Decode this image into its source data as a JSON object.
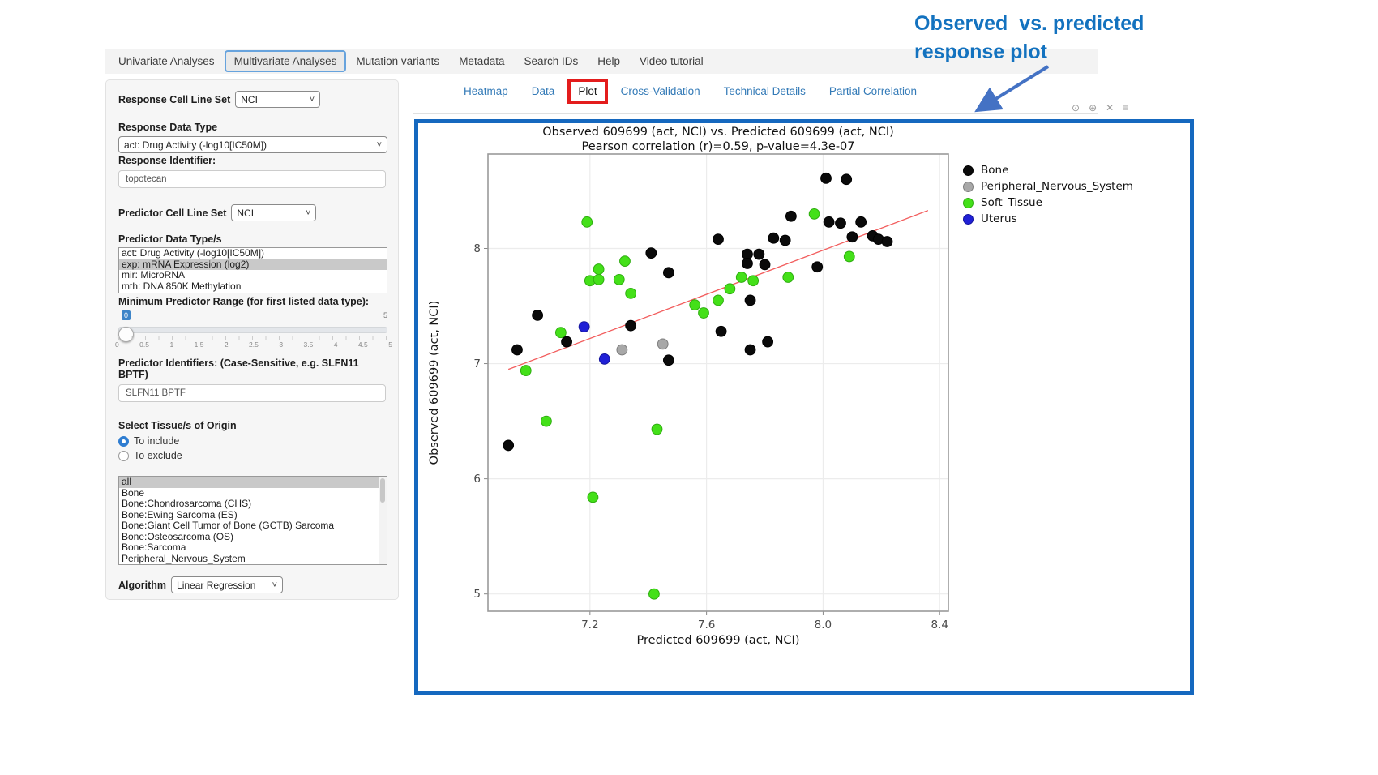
{
  "colors": {
    "link_blue": "#337ab7",
    "annotation_blue": "#1372bf",
    "arrow_blue": "#4472c4",
    "box_border_blue": "#1568bf",
    "red_highlight": "#e31c1c",
    "regression_red": "#f25c5c"
  },
  "annotation": {
    "line1": "Observed  vs. predicted",
    "line2": "response plot"
  },
  "top_nav": {
    "items": [
      "Univariate Analyses",
      "Multivariate Analyses",
      "Mutation variants",
      "Metadata",
      "Search IDs",
      "Help",
      "Video tutorial"
    ],
    "active_index": 1
  },
  "sidebar": {
    "response_cell_line_set": {
      "label": "Response Cell Line Set",
      "value": "NCI"
    },
    "response_data_type": {
      "label": "Response Data Type",
      "value": "act: Drug Activity (-log10[IC50M])"
    },
    "response_identifier": {
      "label": "Response Identifier:",
      "value": "topotecan"
    },
    "predictor_cell_line_set": {
      "label": "Predictor Cell Line Set",
      "value": "NCI"
    },
    "predictor_data_types": {
      "label": "Predictor Data Type/s",
      "options": [
        "act: Drug Activity (-log10[IC50M])",
        "exp: mRNA Expression (log2)",
        "mir: MicroRNA",
        "mth: DNA 850K Methylation"
      ],
      "selected_index": 1
    },
    "min_predictor_range": {
      "label": "Minimum Predictor Range (for first listed data type):",
      "value": "0",
      "max_label": "5",
      "grid": [
        "0",
        "0.5",
        "1",
        "1.5",
        "2",
        "2.5",
        "3",
        "3.5",
        "4",
        "4.5",
        "5"
      ]
    },
    "predictor_identifiers": {
      "label": "Predictor Identifiers: (Case-Sensitive, e.g. SLFN11 BPTF)",
      "value": "SLFN11 BPTF"
    },
    "tissue_origin": {
      "label": "Select Tissue/s of Origin",
      "radios": [
        {
          "label": "To include",
          "selected": true
        },
        {
          "label": "To exclude",
          "selected": false
        }
      ],
      "options": [
        "all",
        "Bone",
        "Bone:Chondrosarcoma (CHS)",
        "Bone:Ewing Sarcoma (ES)",
        "Bone:Giant Cell Tumor of Bone (GCTB) Sarcoma",
        "Bone:Osteosarcoma (OS)",
        "Bone:Sarcoma",
        "Peripheral_Nervous_System"
      ],
      "selected_index": 0
    },
    "algorithm": {
      "label": "Algorithm",
      "value": "Linear Regression"
    }
  },
  "content_tabs": {
    "items": [
      "Heatmap",
      "Data",
      "Plot",
      "Cross-Validation",
      "Technical Details",
      "Partial Correlation"
    ],
    "active_index": 2
  },
  "modebar_icons": [
    "camera-icon",
    "zoom-icon",
    "close-icon",
    "autoscale-icon"
  ],
  "modebar_glyphs": [
    "⊙",
    "⊕",
    "✕",
    "≡"
  ],
  "chart_data": {
    "type": "scatter",
    "title": "Observed 609699 (act, NCI) vs. Predicted 609699 (act, NCI)",
    "subtitle": "Pearson correlation (r)=0.59, p-value=4.3e-07",
    "xlabel": "Predicted 609699 (act, NCI)",
    "ylabel": "Observed 609699 (act, NCI)",
    "xlim": [
      6.85,
      8.43
    ],
    "ylim": [
      4.85,
      8.82
    ],
    "xticks": [
      7.2,
      7.6,
      8.0,
      8.4
    ],
    "xtick_labels": [
      "7.2",
      "7.6",
      "8.0",
      "8.4"
    ],
    "yticks": [
      5,
      6,
      7,
      8
    ],
    "ytick_labels": [
      "5",
      "6",
      "7",
      "8"
    ],
    "grid": true,
    "legend_position": "right-top",
    "regression_line": {
      "x1": 6.92,
      "y1": 6.95,
      "x2": 8.36,
      "y2": 8.33,
      "color": "#f25c5c"
    },
    "series": [
      {
        "name": "Bone",
        "color": "#0a0a0a",
        "edge": "#000000",
        "points": [
          [
            8.01,
            8.61
          ],
          [
            8.08,
            8.6
          ],
          [
            7.89,
            8.28
          ],
          [
            8.02,
            8.23
          ],
          [
            8.06,
            8.22
          ],
          [
            8.13,
            8.23
          ],
          [
            8.1,
            8.1
          ],
          [
            8.17,
            8.11
          ],
          [
            8.19,
            8.08
          ],
          [
            8.22,
            8.06
          ],
          [
            7.64,
            8.08
          ],
          [
            7.83,
            8.09
          ],
          [
            7.87,
            8.07
          ],
          [
            7.41,
            7.96
          ],
          [
            7.74,
            7.95
          ],
          [
            7.74,
            7.87
          ],
          [
            7.78,
            7.95
          ],
          [
            7.8,
            7.86
          ],
          [
            7.47,
            7.79
          ],
          [
            7.98,
            7.84
          ],
          [
            7.75,
            7.55
          ],
          [
            7.02,
            7.42
          ],
          [
            7.34,
            7.33
          ],
          [
            7.12,
            7.19
          ],
          [
            6.95,
            7.12
          ],
          [
            7.65,
            7.28
          ],
          [
            7.81,
            7.19
          ],
          [
            7.75,
            7.12
          ],
          [
            7.47,
            7.03
          ],
          [
            6.92,
            6.29
          ]
        ]
      },
      {
        "name": "Peripheral_Nervous_System",
        "color": "#a8a8a8",
        "edge": "#7e7e7e",
        "points": [
          [
            7.31,
            7.12
          ],
          [
            7.45,
            7.17
          ]
        ]
      },
      {
        "name": "Soft_Tissue",
        "color": "#44e019",
        "edge": "#2fae10",
        "points": [
          [
            7.19,
            8.23
          ],
          [
            7.97,
            8.3
          ],
          [
            8.09,
            7.93
          ],
          [
            7.32,
            7.89
          ],
          [
            7.23,
            7.82
          ],
          [
            7.2,
            7.72
          ],
          [
            7.23,
            7.73
          ],
          [
            7.3,
            7.73
          ],
          [
            7.34,
            7.61
          ],
          [
            7.72,
            7.75
          ],
          [
            7.76,
            7.72
          ],
          [
            7.68,
            7.65
          ],
          [
            7.88,
            7.75
          ],
          [
            7.56,
            7.51
          ],
          [
            7.59,
            7.44
          ],
          [
            7.64,
            7.55
          ],
          [
            7.1,
            7.27
          ],
          [
            6.98,
            6.94
          ],
          [
            7.05,
            6.5
          ],
          [
            7.43,
            6.43
          ],
          [
            7.21,
            5.84
          ],
          [
            7.42,
            5.0
          ]
        ]
      },
      {
        "name": "Uterus",
        "color": "#2020d6",
        "edge": "#15159e",
        "points": [
          [
            7.18,
            7.32
          ],
          [
            7.25,
            7.04
          ]
        ]
      }
    ]
  }
}
